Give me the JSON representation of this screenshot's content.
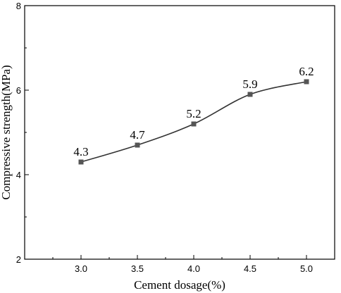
{
  "chart_data": {
    "type": "line",
    "x": [
      3.0,
      3.5,
      4.0,
      4.5,
      5.0
    ],
    "series": [
      {
        "values": [
          4.3,
          4.7,
          5.2,
          5.9,
          6.2
        ],
        "color": "#555555",
        "marker": "square",
        "smooth": true
      }
    ],
    "data_labels": [
      "4.3",
      "4.7",
      "5.2",
      "5.9",
      "6.2"
    ],
    "xlabel": "Cement dosage(%)",
    "ylabel": "Compressive strength(MPa)",
    "xlim": [
      2.5,
      5.25
    ],
    "ylim": [
      2,
      8
    ],
    "x_ticks": [
      "3.0",
      "3.5",
      "4.0",
      "4.5",
      "5.0"
    ],
    "y_ticks": [
      "2",
      "4",
      "6",
      "8"
    ],
    "grid": false,
    "legend": "none"
  }
}
